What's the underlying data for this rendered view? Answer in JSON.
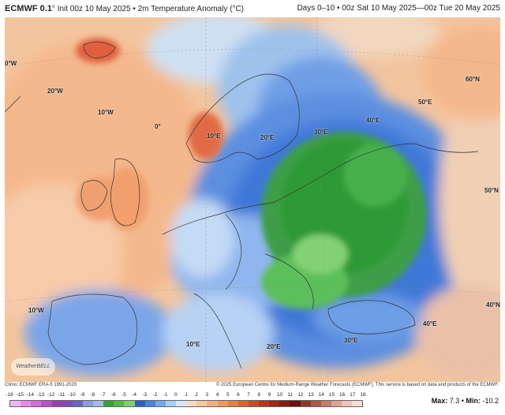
{
  "header": {
    "brand": "ECMWF 0.1",
    "brand_suffix": "°",
    "init": "Init 00z 10 May 2025 • 2m Temperature Anomaly (°C)",
    "valid": "Days 0–10 • 00z Sat 10 May 2025—00z Tue 20 May 2025"
  },
  "map": {
    "labels": {
      "lon_0w": "0°W",
      "lat_60n": "60°N",
      "lon_20w": "20°W",
      "lat_50e": "50°E",
      "lon_10w": "10°W",
      "lon_0": "0°",
      "lon_30e": "30°E",
      "lon_40e": "40°E",
      "lon_10e_top": "10°E",
      "lon_20e_top": "20°E",
      "lat_50n": "50°N",
      "lat_40n": "40°N",
      "lon_10w_bottom": "10°W",
      "lon_10e_bottom": "10°E",
      "lon_20e_bottom": "20°E",
      "lon_30e_bottom": "30°E",
      "lon_40e_bottom": "40°E"
    },
    "logo": "WeatherBELL"
  },
  "footer": {
    "climo": "Climo: ECMWF ERA-5 1991-2020",
    "copyright": "© 2025 European Centre for Medium-Range Weather Forecasts (ECMWF). This service is based on data and products of the ECMWF.",
    "max_label": "Max:",
    "max_value": "7.3",
    "sep": "•",
    "min_label": "Min:",
    "min_value": "-10.2"
  },
  "colorbar": {
    "ticks": [
      "-16",
      "-15",
      "-14",
      "-13",
      "-12",
      "-11",
      "-10",
      "-9",
      "-8",
      "-7",
      "-6",
      "-5",
      "-4",
      "-3",
      "-2",
      "-1",
      "0",
      "1",
      "2",
      "3",
      "4",
      "5",
      "6",
      "7",
      "8",
      "9",
      "10",
      "11",
      "12",
      "13",
      "14",
      "15",
      "16",
      "17",
      "18"
    ],
    "colors": [
      "#f5b3f0",
      "#e88be6",
      "#d46bd6",
      "#b94fc4",
      "#9a3fb3",
      "#7c4bb5",
      "#6b64c2",
      "#8e9bd6",
      "#a6b9e4",
      "#3a9f38",
      "#54b84a",
      "#7fcf6c",
      "#2e5fc2",
      "#4884dc",
      "#73a8ea",
      "#a8cdf3",
      "#d6e8f8",
      "#f3ddc5",
      "#f7c8a0",
      "#f5b07e",
      "#f19660",
      "#e77d47",
      "#db6434",
      "#c94c26",
      "#b5371c",
      "#9e2716",
      "#861a12",
      "#6e1010",
      "#8a3a2a",
      "#a85b48",
      "#c47e6c",
      "#dca296",
      "#ecc2b8",
      "#f5dcd5"
    ]
  }
}
